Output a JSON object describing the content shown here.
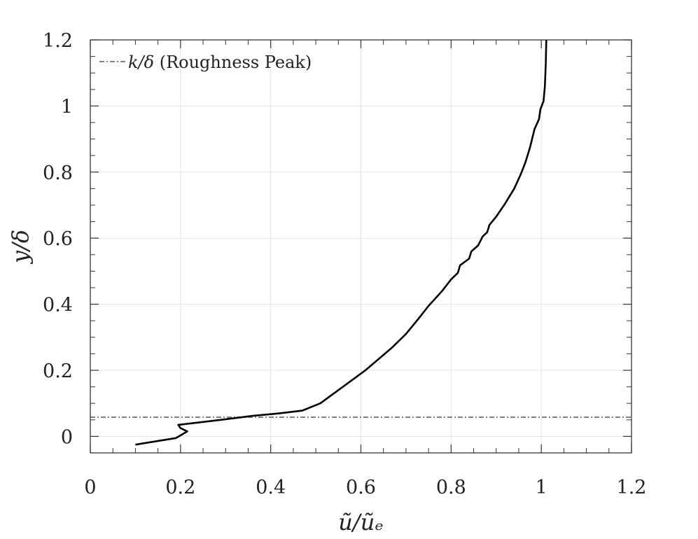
{
  "chart_data": {
    "type": "line",
    "title": "",
    "xlabel": "ũ/ũₑ",
    "ylabel": "y/δ",
    "xlim": [
      0,
      1.2
    ],
    "ylim": [
      -0.05,
      1.2
    ],
    "grid": true,
    "legend_position": "top-left",
    "x_ticks": [
      0,
      0.2,
      0.4,
      0.6,
      0.8,
      1,
      1.2
    ],
    "x_tick_labels": [
      "0",
      "0.2",
      "0.4",
      "0.6",
      "0.8",
      "1",
      "1.2"
    ],
    "y_ticks": [
      0,
      0.2,
      0.4,
      0.6,
      0.8,
      1,
      1.2
    ],
    "y_tick_labels": [
      "0",
      "0.2",
      "0.4",
      "0.6",
      "0.8",
      "1",
      "1.2"
    ],
    "series": [
      {
        "style": "solid",
        "color": "#000000",
        "points": [
          [
            0.1,
            -0.025
          ],
          [
            0.19,
            -0.005
          ],
          [
            0.215,
            0.015
          ],
          [
            0.2,
            0.025
          ],
          [
            0.195,
            0.035
          ],
          [
            0.24,
            0.042
          ],
          [
            0.3,
            0.052
          ],
          [
            0.36,
            0.062
          ],
          [
            0.42,
            0.07
          ],
          [
            0.47,
            0.078
          ],
          [
            0.51,
            0.1
          ],
          [
            0.55,
            0.14
          ],
          [
            0.58,
            0.17
          ],
          [
            0.61,
            0.2
          ],
          [
            0.64,
            0.235
          ],
          [
            0.67,
            0.27
          ],
          [
            0.7,
            0.31
          ],
          [
            0.73,
            0.36
          ],
          [
            0.75,
            0.395
          ],
          [
            0.78,
            0.44
          ],
          [
            0.8,
            0.475
          ],
          [
            0.815,
            0.495
          ],
          [
            0.82,
            0.518
          ],
          [
            0.84,
            0.538
          ],
          [
            0.845,
            0.56
          ],
          [
            0.86,
            0.578
          ],
          [
            0.87,
            0.605
          ],
          [
            0.88,
            0.618
          ],
          [
            0.885,
            0.64
          ],
          [
            0.9,
            0.665
          ],
          [
            0.92,
            0.705
          ],
          [
            0.94,
            0.75
          ],
          [
            0.955,
            0.795
          ],
          [
            0.965,
            0.83
          ],
          [
            0.975,
            0.875
          ],
          [
            0.985,
            0.93
          ],
          [
            0.995,
            0.96
          ],
          [
            0.998,
            0.99
          ],
          [
            1.005,
            1.015
          ],
          [
            1.008,
            1.06
          ],
          [
            1.01,
            1.13
          ],
          [
            1.011,
            1.2
          ]
        ]
      }
    ],
    "reference_lines": [
      {
        "orientation": "horizontal",
        "y": 0.058,
        "style": "dash-dot",
        "color": "#808080",
        "legend_symbol": "k/δ",
        "legend_text": " (Roughness Peak)"
      }
    ]
  }
}
